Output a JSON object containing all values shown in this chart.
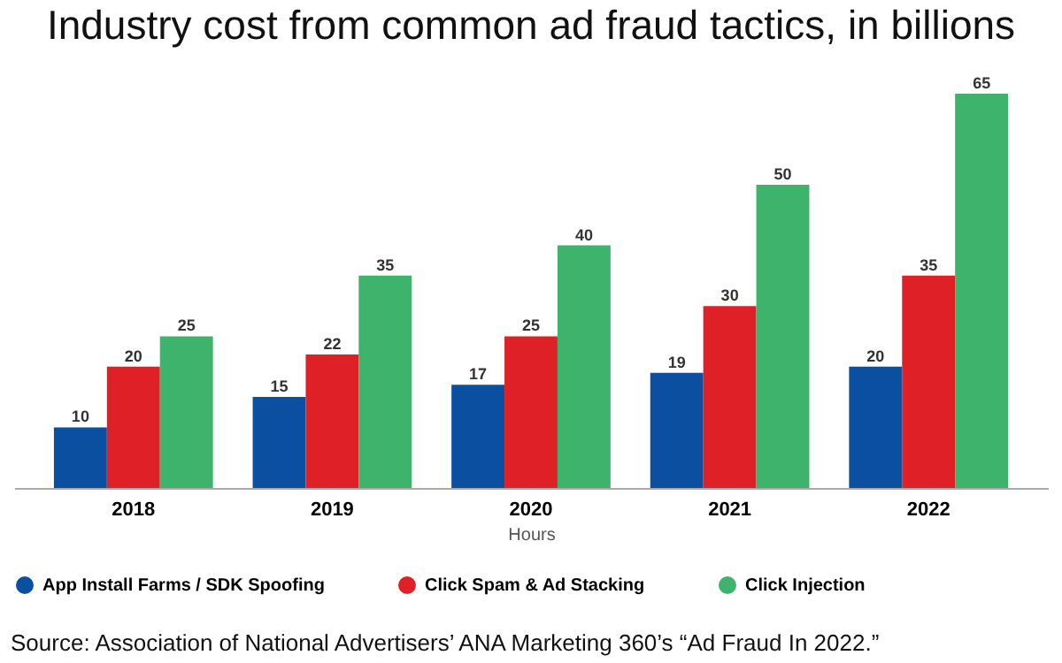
{
  "chart_data": {
    "type": "bar",
    "title": "Industry cost from common ad fraud tactics, in billions",
    "xlabel": "Hours",
    "categories": [
      "2018",
      "2019",
      "2020",
      "2021",
      "2022"
    ],
    "series": [
      {
        "name": "App Install Farms / SDK Spoofing",
        "color": "#0b4fa0",
        "values": [
          10,
          15,
          17,
          19,
          20
        ]
      },
      {
        "name": "Click Spam & Ad Stacking",
        "color": "#e02027",
        "values": [
          20,
          22,
          25,
          30,
          35
        ]
      },
      {
        "name": "Click Injection",
        "color": "#3db36b",
        "values": [
          25,
          35,
          40,
          50,
          65
        ]
      }
    ],
    "data_labels": true,
    "grid": false,
    "legend": "bottom",
    "annotations": [
      "Source: Association of National Advertisers’ ANA Marketing 360’s “Ad Fraud In 2022.”"
    ]
  }
}
